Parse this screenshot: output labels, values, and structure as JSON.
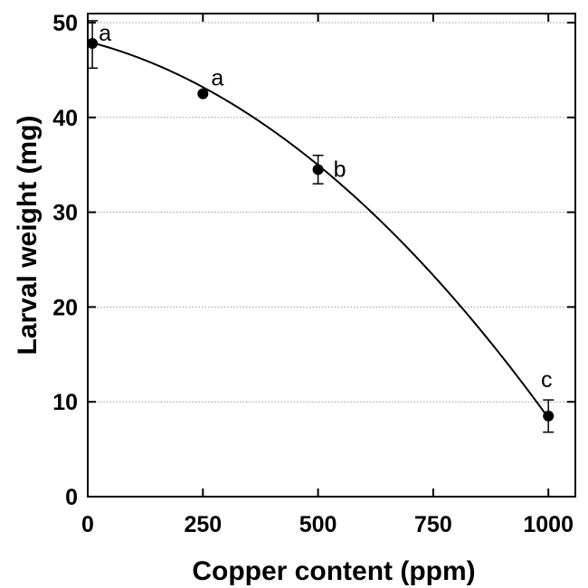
{
  "chart_data": {
    "type": "line",
    "title": "",
    "xlabel": "Copper content (ppm)",
    "ylabel": "Larval weight (mg)",
    "xlim": [
      0,
      1050
    ],
    "ylim": [
      0,
      52
    ],
    "x_ticks": [
      0,
      250,
      500,
      750,
      1000
    ],
    "y_ticks": [
      0,
      10,
      20,
      30,
      40,
      50
    ],
    "grid": {
      "horizontal": true,
      "style": "dotted"
    },
    "series": [
      {
        "points": [
          {
            "x": 10,
            "y": 47.8,
            "err_low": 45.2,
            "err_high": 50.2,
            "label": "a"
          },
          {
            "x": 250,
            "y": 42.5,
            "err_low": null,
            "err_high": null,
            "label": "a"
          },
          {
            "x": 500,
            "y": 34.5,
            "err_low": 33.0,
            "err_high": 36.0,
            "label": "b"
          },
          {
            "x": 1000,
            "y": 8.5,
            "err_low": 6.8,
            "err_high": 10.2,
            "label": "c"
          }
        ]
      }
    ],
    "fit_curve": {
      "type": "quadratic",
      "coefficients": [
        48.0,
        -0.0124,
        -2.73e-05
      ]
    },
    "colors": {
      "line": "#000000",
      "marker": "#000000",
      "grid": "#999999"
    }
  }
}
